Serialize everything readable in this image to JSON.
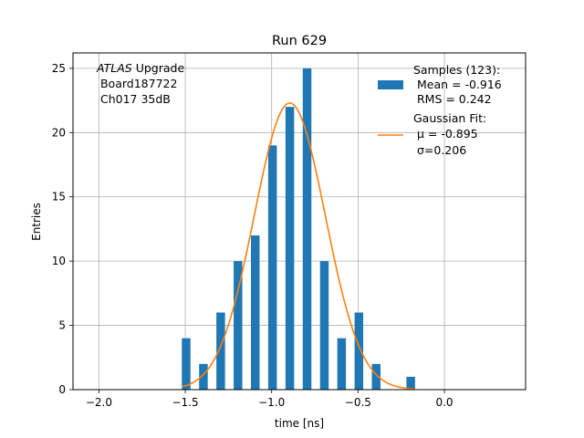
{
  "chart_data": {
    "type": "bar",
    "title": "Run 629",
    "xlabel": "time [ns]",
    "ylabel": "Entries",
    "xlim": [
      -2.15,
      0.47
    ],
    "ylim": [
      0,
      26.2
    ],
    "xticks": [
      -2.0,
      -1.5,
      -1.0,
      -0.5,
      0.0
    ],
    "xtick_labels": [
      "−2.0",
      "−1.5",
      "−1.0",
      "−0.5",
      "0.0"
    ],
    "yticks": [
      0,
      5,
      10,
      15,
      20,
      25
    ],
    "ytick_labels": [
      "0",
      "5",
      "10",
      "15",
      "20",
      "25"
    ],
    "grid": true,
    "bin_width": 0.05,
    "bins": [
      {
        "x0": -1.52,
        "value": 4
      },
      {
        "x0": -1.42,
        "value": 2
      },
      {
        "x0": -1.32,
        "value": 6
      },
      {
        "x0": -1.22,
        "value": 10
      },
      {
        "x0": -1.12,
        "value": 12
      },
      {
        "x0": -1.02,
        "value": 19
      },
      {
        "x0": -0.92,
        "value": 22
      },
      {
        "x0": -0.82,
        "value": 25
      },
      {
        "x0": -0.72,
        "value": 10
      },
      {
        "x0": -0.62,
        "value": 4
      },
      {
        "x0": -0.52,
        "value": 6
      },
      {
        "x0": -0.42,
        "value": 2
      },
      {
        "x0": -0.22,
        "value": 1
      }
    ],
    "fit": {
      "type": "gaussian",
      "amplitude": 22.3,
      "mu": -0.895,
      "sigma": 0.206,
      "x_range": [
        -1.52,
        -0.17
      ]
    },
    "colors": {
      "bars": "#1f77b4",
      "fit": "#ff7f0e",
      "grid": "#b0b0b0"
    },
    "annotation": {
      "italic": "ATLAS",
      "line1_rest": " Upgrade",
      "line2": " Board187722",
      "line3": " Ch017 35dB"
    },
    "legend": {
      "placement": "top-right",
      "samples_label": "Samples (123):",
      "samples_mean": " Mean = -0.916",
      "samples_rms": " RMS = 0.242",
      "fit_label": "Gaussian Fit:",
      "fit_mu": " μ = -0.895",
      "fit_sigma": " σ=0.206"
    }
  }
}
